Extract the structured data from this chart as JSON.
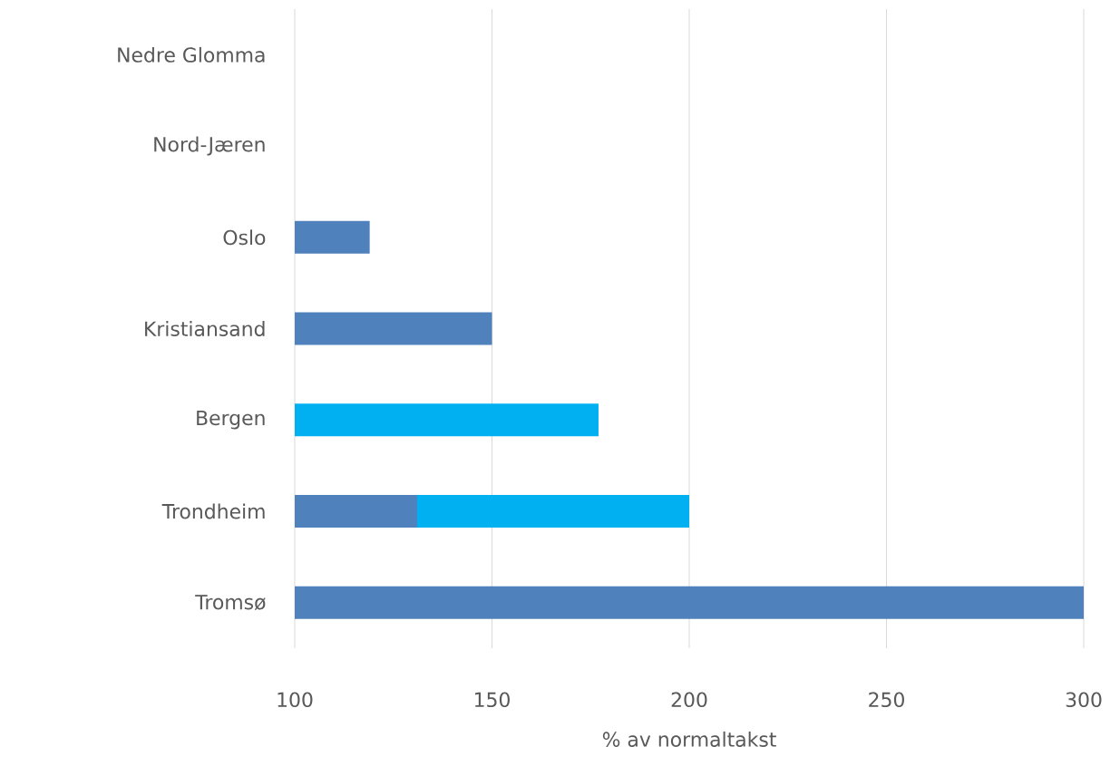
{
  "chart_data": {
    "type": "bar",
    "orientation": "horizontal",
    "xlabel": "% av normaltakst",
    "categories": [
      "Nedre Glomma",
      "Nord-Jæren",
      "Oslo",
      "Kristiansand",
      "Bergen",
      "Trondheim",
      "Tromsø"
    ],
    "series": [
      {
        "color": "#00b0f0",
        "values": [
          null,
          null,
          null,
          null,
          177,
          200,
          null
        ]
      },
      {
        "color": "#4f81bd",
        "values": [
          null,
          null,
          119,
          150,
          null,
          131,
          300
        ]
      }
    ],
    "xlim": [
      100,
      300
    ],
    "xticks": [
      100,
      150,
      200,
      250,
      300
    ],
    "grid": "x"
  }
}
